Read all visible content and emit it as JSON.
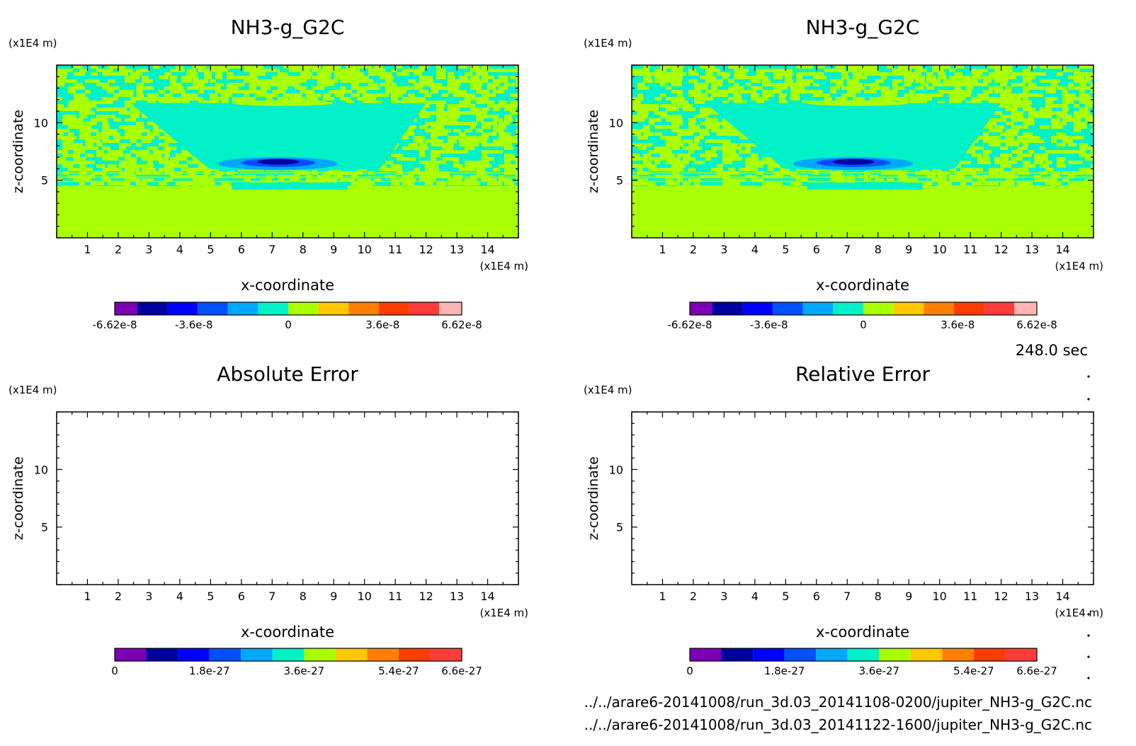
{
  "time_label": "248.0 sec",
  "files": [
    "../../arare6-20141008/run_3d.03_20141108-0200/jupiter_NH3-g_G2C.nc",
    "../../arare6-20141008/run_3d.03_20141122-1600/jupiter_NH3-g_G2C.nc"
  ],
  "colors": {
    "band1": [
      "#7a00b4",
      "#0000a0",
      "#0000ff",
      "#0050ff",
      "#00a8ff",
      "#00f0c8",
      "#aaff00",
      "#ffc800",
      "#ff8000",
      "#ff3c00",
      "#ff3c3c",
      "#ffb4b4"
    ],
    "band2": [
      "#7a00b4",
      "#0000a0",
      "#0000ff",
      "#0050ff",
      "#00a8ff",
      "#00f0c8",
      "#aaff00",
      "#ffc800",
      "#ff8000",
      "#ff3c00",
      "#ff3c3c"
    ]
  },
  "chart_data": [
    {
      "type": "heatmap",
      "title": "NH3-g_G2C",
      "xlabel": "x-coordinate",
      "ylabel": "z-coordinate",
      "x_unit": "(x1E4 m)",
      "y_unit": "(x1E4 m)",
      "xlim": [
        0,
        15
      ],
      "ylim": [
        0,
        15
      ],
      "xticks": [
        "1",
        "2",
        "3",
        "4",
        "5",
        "6",
        "7",
        "8",
        "9",
        "10",
        "11",
        "12",
        "13",
        "14"
      ],
      "yticks": [
        "5",
        "10"
      ],
      "colorbar_ticks": [
        "-6.62e-8",
        "-3.6e-8",
        "0",
        "3.6e-8",
        "6.62e-8"
      ],
      "colorbar_range": [
        -6.62e-08,
        6.62e-08
      ],
      "field": "filled"
    },
    {
      "type": "heatmap",
      "title": "NH3-g_G2C",
      "xlabel": "x-coordinate",
      "ylabel": "z-coordinate",
      "x_unit": "(x1E4 m)",
      "y_unit": "(x1E4 m)",
      "xlim": [
        0,
        15
      ],
      "ylim": [
        0,
        15
      ],
      "xticks": [
        "1",
        "2",
        "3",
        "4",
        "5",
        "6",
        "7",
        "8",
        "9",
        "10",
        "11",
        "12",
        "13",
        "14"
      ],
      "yticks": [
        "5",
        "10"
      ],
      "colorbar_ticks": [
        "-6.62e-8",
        "-3.6e-8",
        "0",
        "3.6e-8",
        "6.62e-8"
      ],
      "colorbar_range": [
        -6.62e-08,
        6.62e-08
      ],
      "field": "filled"
    },
    {
      "type": "heatmap",
      "title": "Absolute Error",
      "xlabel": "x-coordinate",
      "ylabel": "z-coordinate",
      "x_unit": "(x1E4 m)",
      "y_unit": "(x1E4 m)",
      "xlim": [
        0,
        15
      ],
      "ylim": [
        0,
        15
      ],
      "xticks": [
        "1",
        "2",
        "3",
        "4",
        "5",
        "6",
        "7",
        "8",
        "9",
        "10",
        "11",
        "12",
        "13",
        "14"
      ],
      "yticks": [
        "5",
        "10"
      ],
      "colorbar_ticks": [
        "0",
        "1.8e-27",
        "3.6e-27",
        "5.4e-27",
        "6.6e-27"
      ],
      "colorbar_range": [
        0,
        6.6e-27
      ],
      "field": "empty"
    },
    {
      "type": "heatmap",
      "title": "Relative Error",
      "xlabel": "x-coordinate",
      "ylabel": "z-coordinate",
      "x_unit": "(x1E4 m)",
      "y_unit": "(x1E4 m)",
      "xlim": [
        0,
        15
      ],
      "ylim": [
        0,
        15
      ],
      "xticks": [
        "1",
        "2",
        "3",
        "4",
        "5",
        "6",
        "7",
        "8",
        "9",
        "10",
        "11",
        "12",
        "13",
        "14"
      ],
      "yticks": [
        "5",
        "10"
      ],
      "colorbar_ticks": [
        "0",
        "1.8e-27",
        "3.6e-27",
        "5.4e-27",
        "6.6e-27"
      ],
      "colorbar_range": [
        0,
        6.6e-27
      ],
      "field": "empty"
    }
  ]
}
